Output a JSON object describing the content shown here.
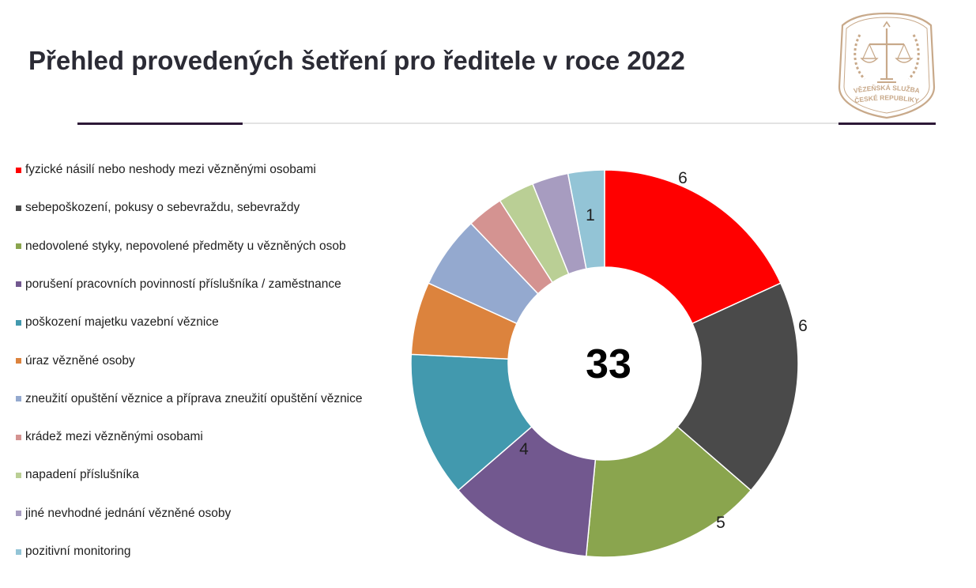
{
  "slide": {
    "title": "Přehled provedených šetření pro ředitele v roce 2022"
  },
  "logo": {
    "text_line1": "VĚZEŇSKÁ SLUŽBA",
    "text_line2": "ČESKÉ REPUBLIKY",
    "color": "#c8a98a"
  },
  "chart_data": {
    "type": "pie",
    "donut": true,
    "total": 33,
    "center_label": "33",
    "legend_position": "left",
    "series": [
      {
        "name": "fyzické násilí nebo neshody mezi vězněnými osobami",
        "value": 6,
        "color": "#ff0000",
        "label": "6"
      },
      {
        "name": "sebepoškození, pokusy o sebevraždu, sebevraždy",
        "value": 6,
        "color": "#4a4a4a",
        "label": "6"
      },
      {
        "name": "nedovolené styky, nepovolené předměty u vězněných osob",
        "value": 5,
        "color": "#8aa54e",
        "label": "5"
      },
      {
        "name": "porušení pracovních povinností příslušníka / zaměstnance",
        "value": 4,
        "color": "#72588f",
        "label": "4"
      },
      {
        "name": "poškození majetku vazební věznice",
        "value": 4,
        "color": "#4299ae",
        "label": ""
      },
      {
        "name": "úraz vězněné osoby",
        "value": 2,
        "color": "#dc833d",
        "label": ""
      },
      {
        "name": "zneužití opuštění věznice a příprava zneužití opuštění věznice",
        "value": 2,
        "color": "#94a9cf",
        "label": ""
      },
      {
        "name": "krádež mezi vězněnými osobami",
        "value": 1,
        "color": "#d49391",
        "label": ""
      },
      {
        "name": "napadení příslušníka",
        "value": 1,
        "color": "#bacf95",
        "label": ""
      },
      {
        "name": "jiné nevhodné jednání vězněné osoby",
        "value": 1,
        "color": "#a79cc0",
        "label": ""
      },
      {
        "name": "pozitivní monitoring",
        "value": 1,
        "color": "#93c4d6",
        "label": "1"
      }
    ]
  }
}
